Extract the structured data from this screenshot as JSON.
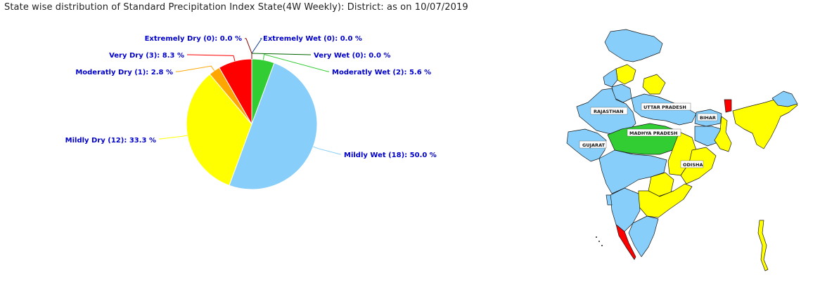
{
  "title": "State wise distribution of Standard Precipitation Index State(4W Weekly): District: as on 10/07/2019",
  "chart_data": {
    "type": "pie",
    "start_angle_deg": 0,
    "direction": "clockwise",
    "slices": [
      {
        "key": "extremely-wet",
        "name": "Extremely Wet",
        "count": 0,
        "percent": 0.0,
        "color": "#0b3d91",
        "label": "Extremely Wet (0): 0.0 %"
      },
      {
        "key": "very-wet",
        "name": "Very Wet",
        "count": 0,
        "percent": 0.0,
        "color": "#006400",
        "label": "Very Wet (0): 0.0 %"
      },
      {
        "key": "moderately-wet",
        "name": "Moderatly Wet",
        "count": 2,
        "percent": 5.6,
        "color": "#32cd32",
        "label": "Moderatly Wet (2): 5.6 %"
      },
      {
        "key": "mildly-wet",
        "name": "Mildly Wet",
        "count": 18,
        "percent": 50.0,
        "color": "#87cefa",
        "label": "Mildly Wet (18): 50.0 %"
      },
      {
        "key": "mildly-dry",
        "name": "Mildly Dry",
        "count": 12,
        "percent": 33.3,
        "color": "#ffff00",
        "label": "Mildly Dry (12): 33.3 %"
      },
      {
        "key": "moderately-dry",
        "name": "Moderatly Dry",
        "count": 1,
        "percent": 2.8,
        "color": "#ffa500",
        "label": "Moderatly Dry (1): 2.8 %"
      },
      {
        "key": "very-dry",
        "name": "Very Dry",
        "count": 3,
        "percent": 8.3,
        "color": "#ff0000",
        "label": "Very Dry (3): 8.3 %"
      },
      {
        "key": "extremely-dry",
        "name": "Extremely Dry",
        "count": 0,
        "percent": 0.0,
        "color": "#8b0000",
        "label": "Extremely Dry (0): 0.0 %"
      }
    ]
  },
  "map": {
    "state_labels": [
      "RAJASTHAN",
      "UTTAR PRADESH",
      "BIHAR",
      "MADHYA PRADESH",
      "GUJARAT",
      "ODISHA"
    ],
    "colors": {
      "mildly_wet": "#87cefa",
      "mildly_dry": "#ffff00",
      "moderately_wet": "#32cd32",
      "very_dry": "#ff0000",
      "moderately_dry": "#ffa500"
    }
  }
}
